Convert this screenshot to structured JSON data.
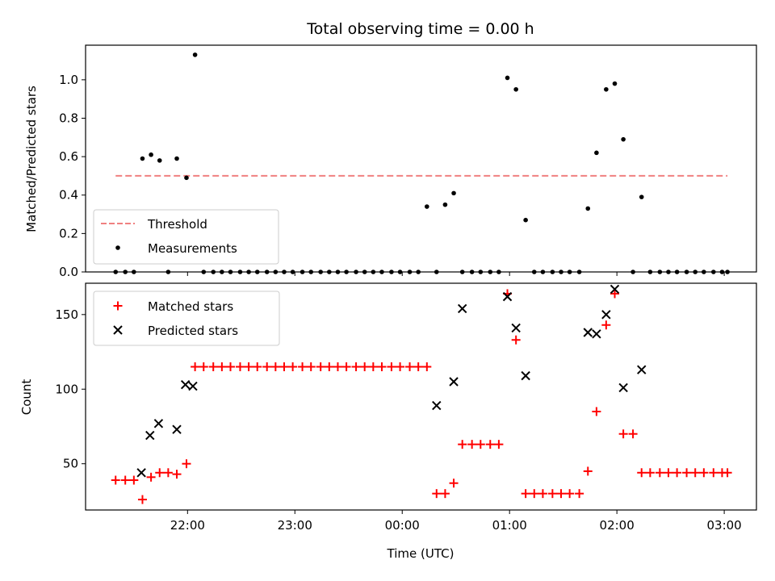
{
  "title": "Total observing time = 0.00 h",
  "colors": {
    "threshold": "#f08080",
    "measurement": "#000000",
    "matched": "#ff0000",
    "predicted": "#000000"
  },
  "chart_data": [
    {
      "type": "scatter",
      "ylabel": "Matched/Predicted stars",
      "xlabel": "",
      "x_range_hours_since_midnight": [
        -2.95,
        3.3
      ],
      "ylim": [
        0,
        1.18
      ],
      "yticks": [
        0.0,
        0.2,
        0.4,
        0.6,
        0.8,
        1.0
      ],
      "ytick_labels": [
        "0.0",
        "0.2",
        "0.4",
        "0.6",
        "0.8",
        "1.0"
      ],
      "legend": {
        "position": "lower left",
        "entries": [
          "Threshold",
          "Measurements"
        ]
      },
      "threshold": {
        "name": "Threshold",
        "value": 0.5,
        "x": [
          -2.67,
          3.03
        ]
      },
      "measurements": {
        "name": "Measurements",
        "x": [
          -2.67,
          -2.58,
          -2.5,
          -2.42,
          -2.34,
          -2.26,
          -2.18,
          -2.1,
          -2.01,
          -1.93,
          -1.85,
          -1.76,
          -1.68,
          -1.6,
          -1.51,
          -1.43,
          -1.35,
          -1.26,
          -1.18,
          -1.1,
          -1.02,
          -0.93,
          -0.85,
          -0.76,
          -0.68,
          -0.6,
          -0.52,
          -0.43,
          -0.35,
          -0.27,
          -0.19,
          -0.1,
          -0.02,
          0.07,
          0.15,
          0.23,
          0.32,
          0.4,
          0.48,
          0.56,
          0.65,
          0.73,
          0.82,
          0.9,
          0.98,
          1.06,
          1.15,
          1.23,
          1.31,
          1.4,
          1.48,
          1.56,
          1.65,
          1.73,
          1.81,
          1.9,
          1.98,
          2.06,
          2.15,
          2.23,
          2.31,
          2.4,
          2.48,
          2.56,
          2.65,
          2.73,
          2.81,
          2.9,
          2.98,
          3.03
        ],
        "y": [
          0,
          0,
          0,
          0.59,
          0.61,
          0.58,
          0,
          0.59,
          0.49,
          1.13,
          0,
          0,
          0,
          0,
          0,
          0,
          0,
          0,
          0,
          0,
          0,
          0,
          0,
          0,
          0,
          0,
          0,
          0,
          0,
          0,
          0,
          0,
          0,
          0,
          0,
          0.34,
          0,
          0.35,
          0.41,
          0,
          0,
          0,
          0,
          0,
          1.01,
          0.95,
          0.27,
          0,
          0,
          0,
          0,
          0,
          0,
          0.33,
          0.62,
          0.95,
          0.98,
          0.69,
          0,
          0.39,
          0,
          0,
          0,
          0,
          0,
          0,
          0,
          0,
          0,
          0
        ]
      }
    },
    {
      "type": "scatter",
      "ylabel": "Count",
      "xlabel": "Time (UTC)",
      "x_range_hours_since_midnight": [
        -2.95,
        3.3
      ],
      "ylim": [
        19,
        171
      ],
      "yticks": [
        50,
        100,
        150
      ],
      "ytick_labels": [
        "50",
        "100",
        "150"
      ],
      "xticks_hours_since_midnight": [
        -2,
        -1,
        0,
        1,
        2,
        3
      ],
      "xtick_labels": [
        "22:00",
        "23:00",
        "00:00",
        "01:00",
        "02:00",
        "03:00"
      ],
      "legend": {
        "position": "upper left",
        "entries": [
          "Matched stars",
          "Predicted stars"
        ]
      },
      "matched": {
        "name": "Matched stars",
        "x": [
          -2.67,
          -2.58,
          -2.5,
          -2.42,
          -2.34,
          -2.26,
          -2.18,
          -2.1,
          -2.01,
          -1.93,
          -1.85,
          -1.76,
          -1.68,
          -1.6,
          -1.51,
          -1.43,
          -1.35,
          -1.26,
          -1.18,
          -1.1,
          -1.02,
          -0.93,
          -0.85,
          -0.76,
          -0.68,
          -0.6,
          -0.52,
          -0.43,
          -0.35,
          -0.27,
          -0.19,
          -0.1,
          -0.02,
          0.07,
          0.15,
          0.23,
          0.32,
          0.4,
          0.48,
          0.56,
          0.65,
          0.73,
          0.82,
          0.9,
          0.98,
          1.06,
          1.15,
          1.23,
          1.31,
          1.4,
          1.48,
          1.56,
          1.65,
          1.73,
          1.81,
          1.9,
          1.98,
          2.06,
          2.15,
          2.23,
          2.31,
          2.4,
          2.48,
          2.56,
          2.65,
          2.73,
          2.81,
          2.9,
          2.98,
          3.03
        ],
        "y": [
          39,
          39,
          39,
          26,
          41,
          44,
          44,
          43,
          50,
          115,
          115,
          115,
          115,
          115,
          115,
          115,
          115,
          115,
          115,
          115,
          115,
          115,
          115,
          115,
          115,
          115,
          115,
          115,
          115,
          115,
          115,
          115,
          115,
          115,
          115,
          115,
          30,
          30,
          37,
          63,
          63,
          63,
          63,
          63,
          164,
          133,
          30,
          30,
          30,
          30,
          30,
          30,
          30,
          45,
          85,
          143,
          164,
          70,
          70,
          44,
          44,
          44,
          44,
          44,
          44,
          44,
          44,
          44,
          44,
          44
        ]
      },
      "predicted": {
        "name": "Predicted stars",
        "x": [
          -2.43,
          -2.35,
          -2.27,
          -2.1,
          -2.02,
          -1.95,
          0.32,
          0.48,
          0.56,
          0.98,
          1.06,
          1.15,
          1.73,
          1.81,
          1.9,
          1.98,
          2.06,
          2.23
        ],
        "y": [
          44,
          69,
          77,
          73,
          103,
          102,
          89,
          105,
          154,
          162,
          141,
          109,
          138,
          137,
          150,
          167,
          101,
          113
        ]
      }
    }
  ]
}
